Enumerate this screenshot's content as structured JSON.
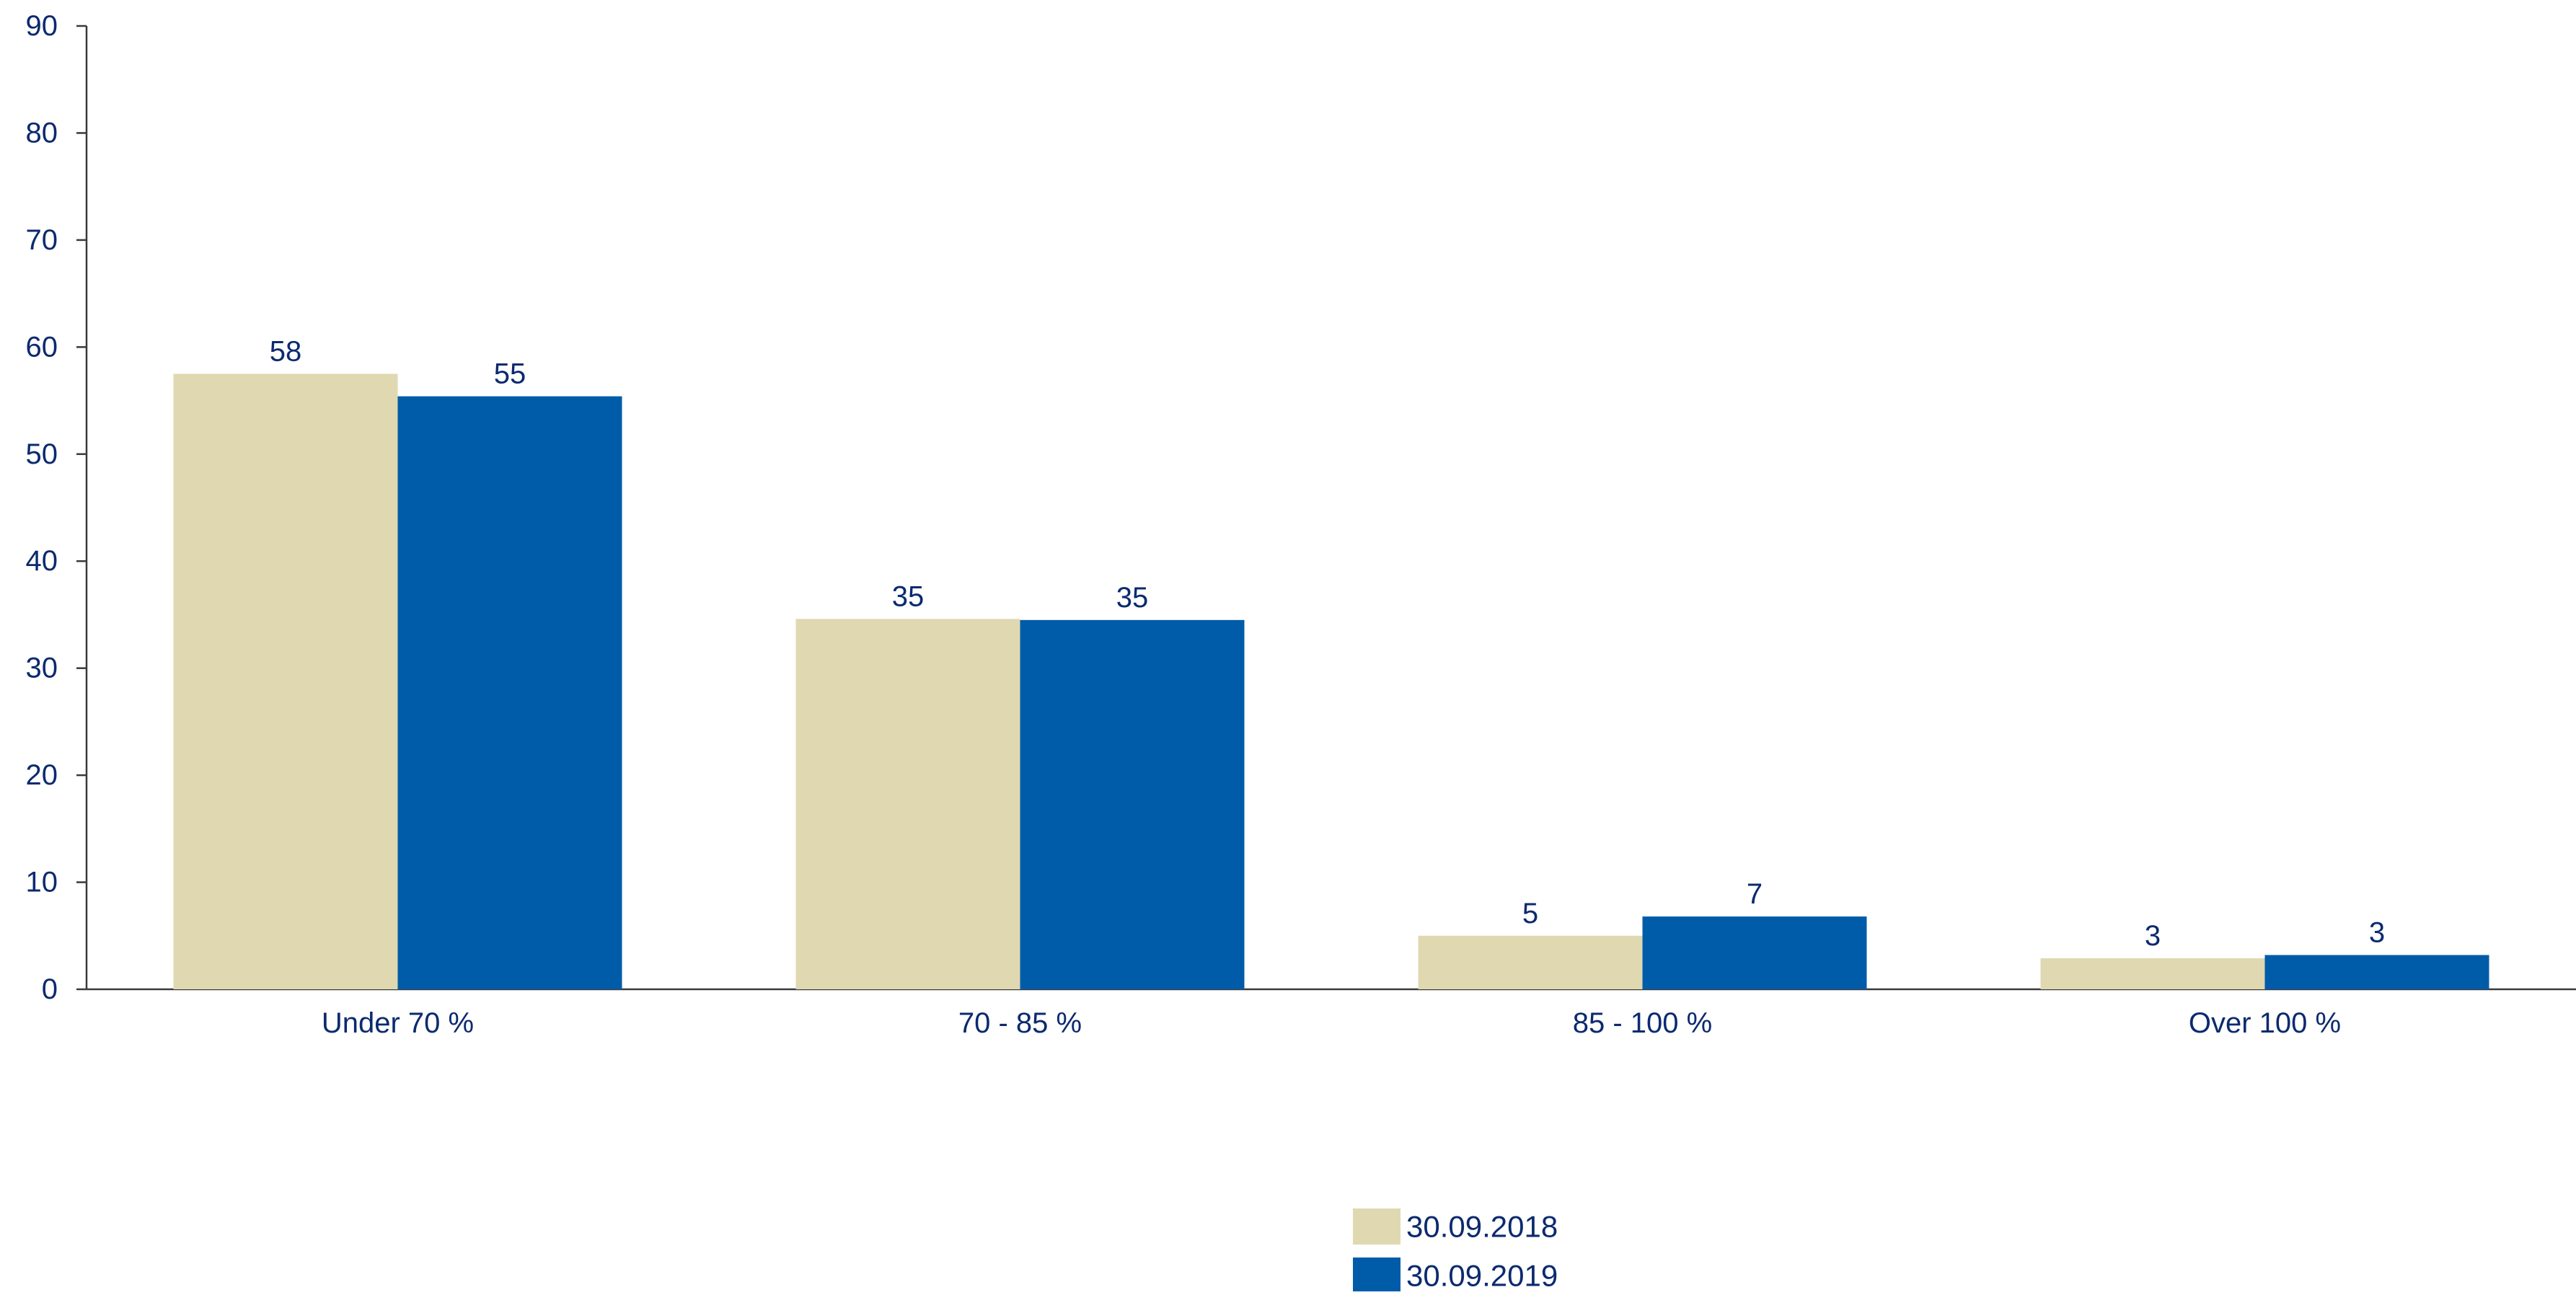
{
  "chart_data": {
    "type": "bar",
    "categories": [
      "Under 70 %",
      "70 - 85 %",
      "85 - 100 %",
      "Over 100 %"
    ],
    "series": [
      {
        "name": "30.09.2018",
        "color": "#e0d8b0",
        "values": [
          57.5,
          34.6,
          5.0,
          2.9
        ],
        "labels": [
          "58",
          "35",
          "5",
          "3"
        ]
      },
      {
        "name": "30.09.2019",
        "color": "#005ca9",
        "values": [
          55.4,
          34.5,
          6.8,
          3.2
        ],
        "labels": [
          "55",
          "35",
          "7",
          "3"
        ]
      }
    ],
    "ylim": [
      0,
      90
    ],
    "yticks": [
      "0",
      "10",
      "20",
      "30",
      "40",
      "50",
      "60",
      "70",
      "80",
      "90"
    ],
    "title": "",
    "xlabel": "",
    "ylabel": "",
    "grid": false,
    "legend_position": "bottom-center",
    "text_color": "#0b2a6f",
    "axis_color": "#3a3a3a"
  }
}
